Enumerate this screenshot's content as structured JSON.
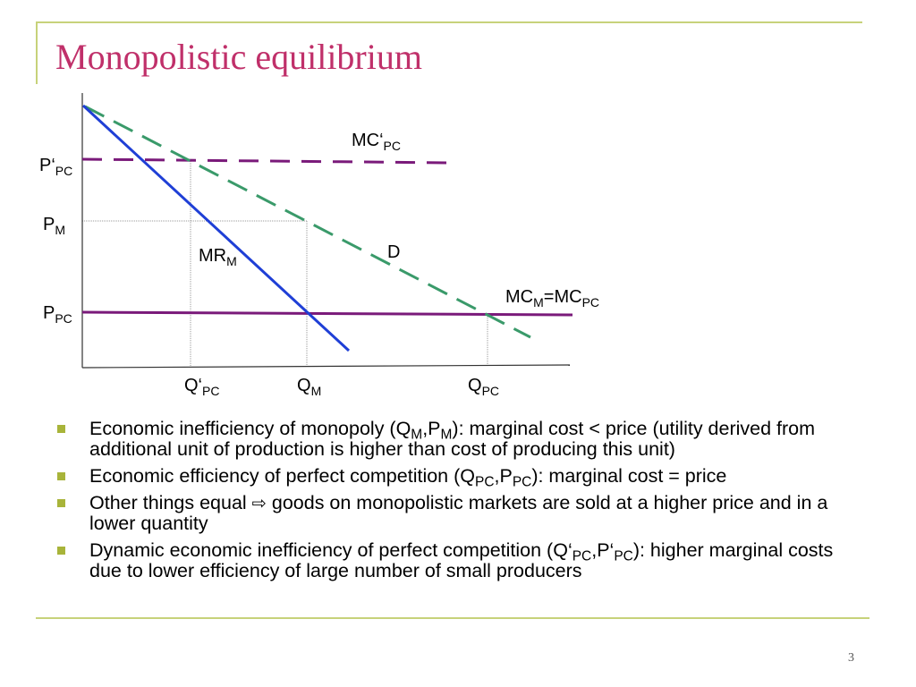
{
  "slide": {
    "title": "Monopolistic equilibrium",
    "page_number": "3"
  },
  "diagram": {
    "labels": {
      "p_pc_prime": "P‘",
      "p_pc_prime_sub": "PC",
      "p_m": "P",
      "p_m_sub": "M",
      "p_pc": "P",
      "p_pc_sub": "PC",
      "mc_pc_prime": "MC‘",
      "mc_pc_prime_sub": "PC",
      "mr_m": "MR",
      "mr_m_sub": "M",
      "d": "D",
      "mc_m_eq": "MC",
      "mc_m_eq_sub1": "M",
      "mc_m_eq_mid": "=MC",
      "mc_m_eq_sub2": "PC",
      "q_pc_prime": "Q‘",
      "q_pc_prime_sub": "PC",
      "q_m": "Q",
      "q_m_sub": "M",
      "q_pc": "Q",
      "q_pc_sub": "PC"
    },
    "colors": {
      "mr_line": "#1f3fd6",
      "demand_line": "#3a9a6a",
      "mc_lines": "#7a1a7a",
      "axes": "#333333",
      "guides": "#999999"
    }
  },
  "bullets": [
    {
      "t1": "Economic inefficiency of monopoly (Q",
      "s1": "M",
      "t2": ",P",
      "s2": "M",
      "t3": "): marginal cost  < price (utility derived from additional unit of production is higher than cost of producing this unit)"
    },
    {
      "t1": "Economic efficiency of perfect competition (Q",
      "s1": "PC",
      "t2": ",P",
      "s2": "PC",
      "t3": "): marginal cost = price"
    },
    {
      "t1": "Other things equal ",
      "arrow": "⇨",
      "t2": " goods on monopolistic markets are sold at a higher price and in a lower quantity"
    },
    {
      "t1": "Dynamic economic inefficiency of perfect competition (Q‘",
      "s1": "PC",
      "t2": ",P‘",
      "s2": "PC",
      "t3": "): higher marginal costs due to lower efficiency of large number of small producers"
    }
  ]
}
